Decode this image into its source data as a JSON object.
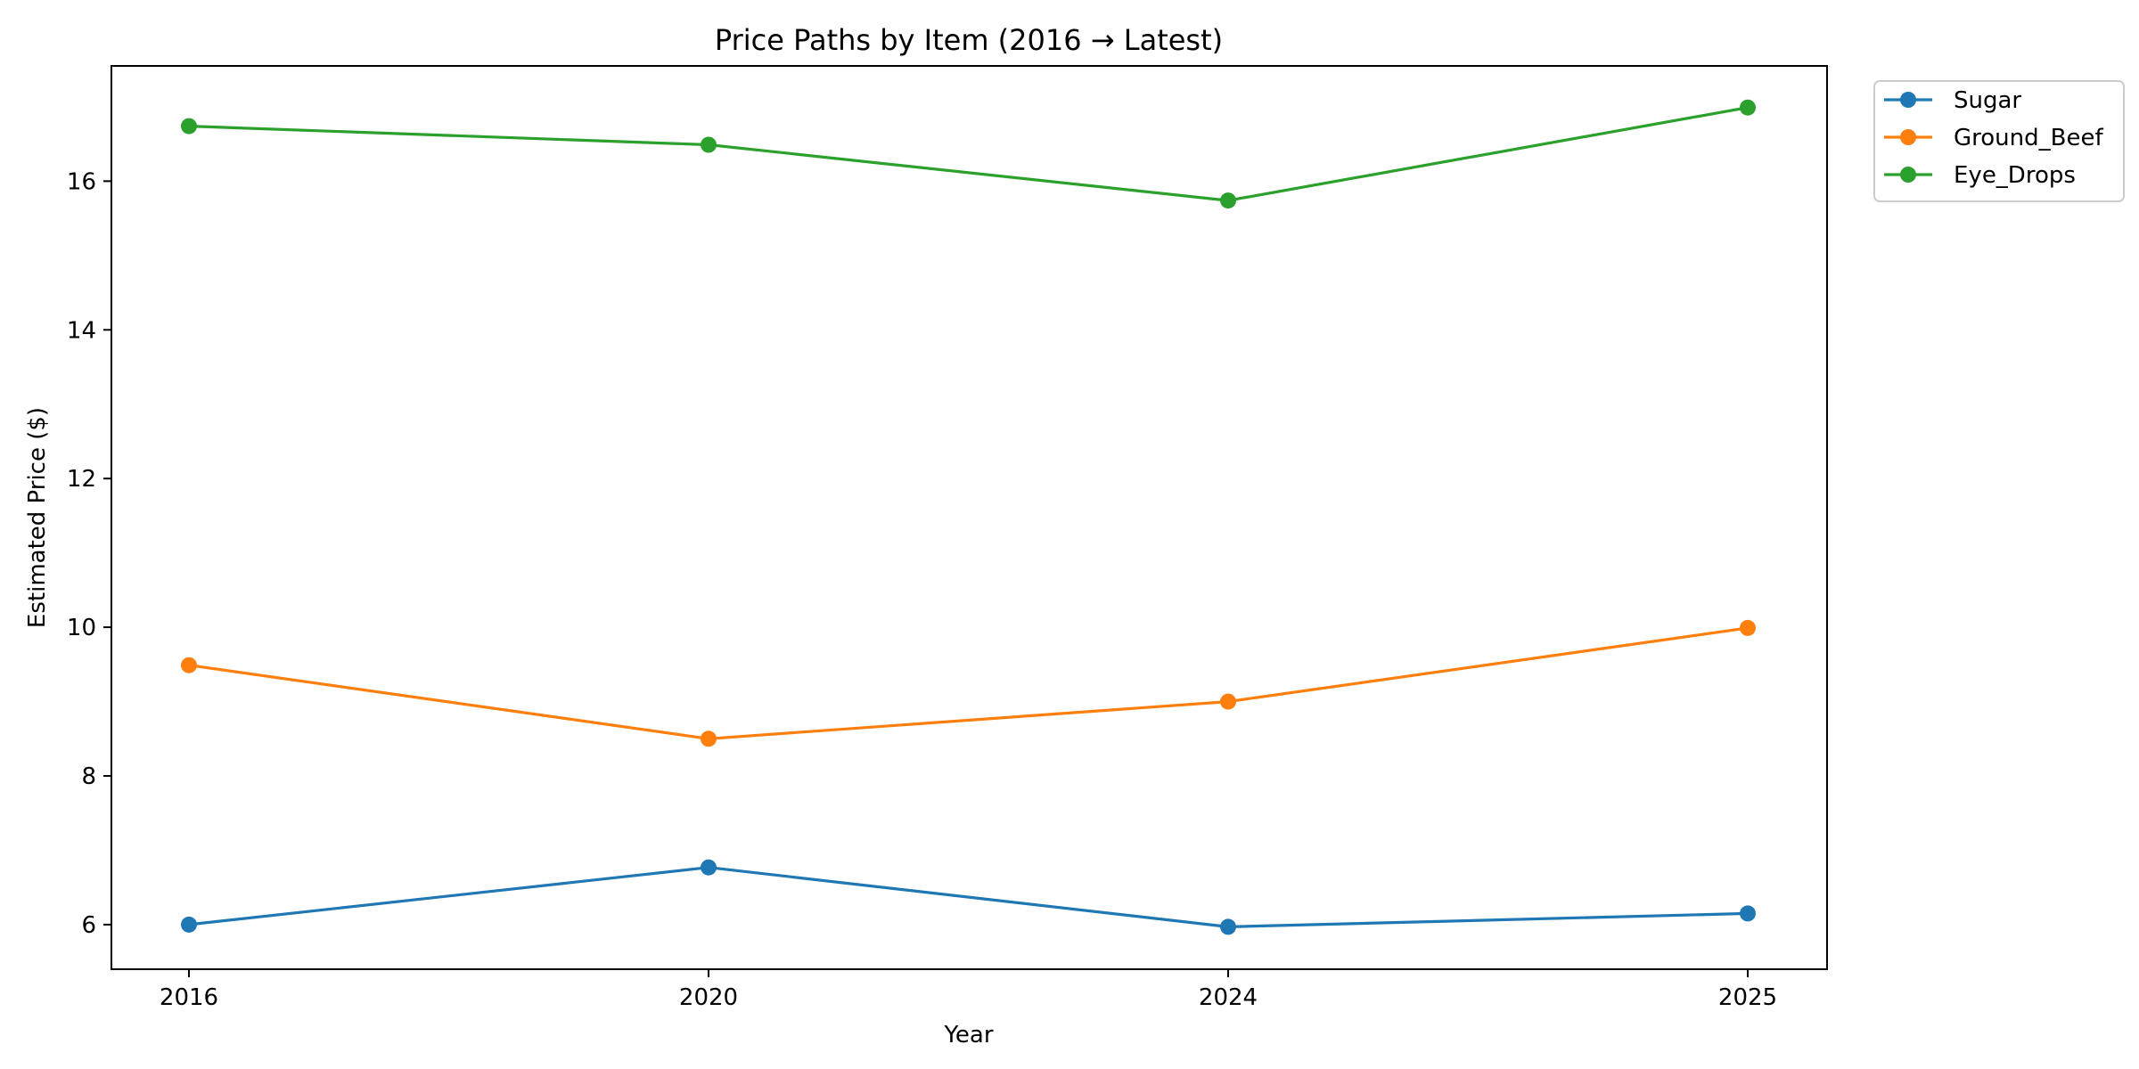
{
  "chart_data": {
    "type": "line",
    "title": "Price Paths by Item (2016 → Latest)",
    "xlabel": "Year",
    "ylabel": "Estimated Price ($)",
    "categories": [
      "2016",
      "2020",
      "2024",
      "2025"
    ],
    "ylim": [
      5.4,
      17.55
    ],
    "yticks": [
      6,
      8,
      10,
      12,
      14,
      16
    ],
    "grid": false,
    "legend_position": "outside top-right",
    "series": [
      {
        "name": "Sugar",
        "color": "#1f77b4",
        "values": [
          6.0,
          6.77,
          5.97,
          6.15
        ]
      },
      {
        "name": "Ground_Beef",
        "color": "#ff7f0e",
        "values": [
          9.49,
          8.5,
          9.0,
          9.99
        ]
      },
      {
        "name": "Eye_Drops",
        "color": "#2ca02c",
        "values": [
          16.74,
          16.49,
          15.74,
          16.99
        ]
      }
    ]
  }
}
